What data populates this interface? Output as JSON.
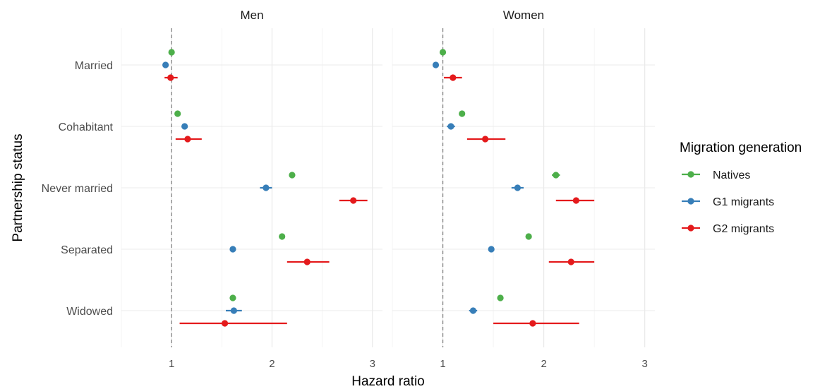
{
  "chart_data": {
    "type": "scatter",
    "subtype": "forest-plot",
    "panels": [
      "Men",
      "Women"
    ],
    "categories": [
      "Married",
      "Cohabitant",
      "Never married",
      "Separated",
      "Widowed"
    ],
    "xlabel": "Hazard ratio",
    "ylabel": "Partnership status",
    "xlim": [
      0.5,
      3.1
    ],
    "xticks": [
      1,
      2,
      3
    ],
    "reference_line": 1,
    "grid": true,
    "legend": {
      "title": "Migration generation",
      "position": "right"
    },
    "series": [
      {
        "name": "Natives",
        "color": "#4DAF4A",
        "Men": [
          {
            "y": "Married",
            "x": 1.0,
            "lo": 1.0,
            "hi": 1.0
          },
          {
            "y": "Cohabitant",
            "x": 1.06,
            "lo": 1.04,
            "hi": 1.08
          },
          {
            "y": "Never married",
            "x": 2.2,
            "lo": 2.17,
            "hi": 2.23
          },
          {
            "y": "Separated",
            "x": 2.1,
            "lo": 2.07,
            "hi": 2.13
          },
          {
            "y": "Widowed",
            "x": 1.61,
            "lo": 1.58,
            "hi": 1.64
          }
        ],
        "Women": [
          {
            "y": "Married",
            "x": 1.0,
            "lo": 1.0,
            "hi": 1.0
          },
          {
            "y": "Cohabitant",
            "x": 1.19,
            "lo": 1.17,
            "hi": 1.21
          },
          {
            "y": "Never married",
            "x": 2.12,
            "lo": 2.08,
            "hi": 2.16
          },
          {
            "y": "Separated",
            "x": 1.85,
            "lo": 1.82,
            "hi": 1.88
          },
          {
            "y": "Widowed",
            "x": 1.57,
            "lo": 1.54,
            "hi": 1.6
          }
        ]
      },
      {
        "name": "G1 migrants",
        "color": "#377EB8",
        "Men": [
          {
            "y": "Married",
            "x": 0.94,
            "lo": 0.92,
            "hi": 0.96
          },
          {
            "y": "Cohabitant",
            "x": 1.13,
            "lo": 1.1,
            "hi": 1.16
          },
          {
            "y": "Never married",
            "x": 1.94,
            "lo": 1.88,
            "hi": 2.0
          },
          {
            "y": "Separated",
            "x": 1.61,
            "lo": 1.58,
            "hi": 1.64
          },
          {
            "y": "Widowed",
            "x": 1.62,
            "lo": 1.54,
            "hi": 1.7
          }
        ],
        "Women": [
          {
            "y": "Married",
            "x": 0.93,
            "lo": 0.91,
            "hi": 0.95
          },
          {
            "y": "Cohabitant",
            "x": 1.08,
            "lo": 1.04,
            "hi": 1.12
          },
          {
            "y": "Never married",
            "x": 1.74,
            "lo": 1.68,
            "hi": 1.8
          },
          {
            "y": "Separated",
            "x": 1.48,
            "lo": 1.45,
            "hi": 1.51
          },
          {
            "y": "Widowed",
            "x": 1.3,
            "lo": 1.26,
            "hi": 1.34
          }
        ]
      },
      {
        "name": "G2 migrants",
        "color": "#E41A1C",
        "Men": [
          {
            "y": "Married",
            "x": 0.99,
            "lo": 0.93,
            "hi": 1.06
          },
          {
            "y": "Cohabitant",
            "x": 1.16,
            "lo": 1.04,
            "hi": 1.3
          },
          {
            "y": "Never married",
            "x": 2.81,
            "lo": 2.67,
            "hi": 2.95
          },
          {
            "y": "Separated",
            "x": 2.35,
            "lo": 2.15,
            "hi": 2.57
          },
          {
            "y": "Widowed",
            "x": 1.53,
            "lo": 1.08,
            "hi": 2.15
          }
        ],
        "Women": [
          {
            "y": "Married",
            "x": 1.1,
            "lo": 1.01,
            "hi": 1.19
          },
          {
            "y": "Cohabitant",
            "x": 1.42,
            "lo": 1.24,
            "hi": 1.62
          },
          {
            "y": "Never married",
            "x": 2.32,
            "lo": 2.12,
            "hi": 2.5
          },
          {
            "y": "Separated",
            "x": 2.27,
            "lo": 2.05,
            "hi": 2.5
          },
          {
            "y": "Widowed",
            "x": 1.89,
            "lo": 1.5,
            "hi": 2.35
          }
        ]
      }
    ]
  }
}
